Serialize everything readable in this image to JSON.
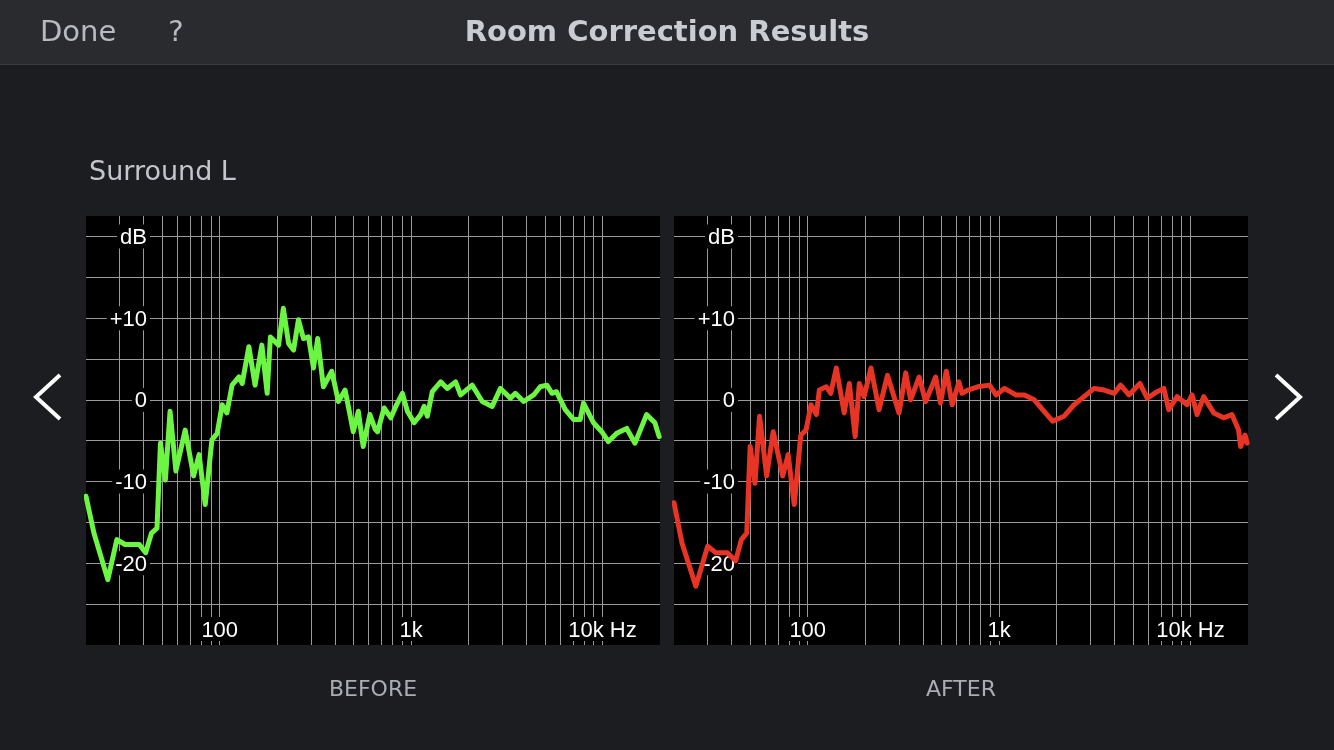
{
  "chart_data": [
    {
      "type": "line",
      "title": "Room Correction Results",
      "subtitle": "Surround L",
      "annotations": [
        "Done",
        "?"
      ],
      "xlabel": "BEFORE",
      "log": "x",
      "grid": true,
      "marker": "none",
      "line_style": "solid",
      "xlim": [
        20,
        20000
      ],
      "ylim": [
        -30,
        22.5
      ],
      "xticks": [
        {
          "value": 30,
          "label": null
        },
        {
          "value": 40,
          "label": null
        },
        {
          "value": 50,
          "label": null
        },
        {
          "value": 60,
          "label": null
        },
        {
          "value": 70,
          "label": null
        },
        {
          "value": 80,
          "label": null
        },
        {
          "value": 90,
          "label": null
        },
        100,
        {
          "value": 200,
          "label": null
        },
        {
          "value": 300,
          "label": null
        },
        {
          "value": 400,
          "label": null
        },
        {
          "value": 500,
          "label": null
        },
        {
          "value": 600,
          "label": null
        },
        {
          "value": 700,
          "label": null
        },
        {
          "value": 800,
          "label": null
        },
        {
          "value": 900,
          "label": null
        },
        {
          "value": 1000,
          "label": "1k"
        },
        {
          "value": 2000,
          "label": null
        },
        {
          "value": 3000,
          "label": null
        },
        {
          "value": 4000,
          "label": null
        },
        {
          "value": 5000,
          "label": null
        },
        {
          "value": 6000,
          "label": null
        },
        {
          "value": 7000,
          "label": null
        },
        {
          "value": 8000,
          "label": null
        },
        {
          "value": 9000,
          "label": null
        },
        {
          "value": 10000,
          "label": "10k Hz"
        }
      ],
      "yticks": [
        {
          "value": -25,
          "label": null
        },
        -20,
        {
          "value": -15,
          "label": null
        },
        -10,
        {
          "value": -5,
          "label": null
        },
        0,
        {
          "value": 5,
          "label": null
        },
        {
          "value": 10,
          "label": "+10"
        },
        {
          "value": 15,
          "label": null
        },
        {
          "value": 20,
          "label": "dB"
        }
      ],
      "series": [
        {
          "color": "#6cf542",
          "x": [
            20,
            22,
            26,
            29,
            32,
            38,
            41,
            44,
            47,
            49,
            52,
            55,
            59,
            66,
            73,
            78,
            84,
            91,
            97,
            103,
            109,
            116,
            126,
            131,
            142,
            153,
            166,
            177,
            184,
            203,
            215,
            229,
            243,
            258,
            274,
            291,
            309,
            325,
            348,
            385,
            417,
            452,
            499,
            530,
            562,
            609,
            650,
            668,
            723,
            784,
            832,
            901,
            957,
            1037,
            1123,
            1169,
            1216,
            1291,
            1428,
            1546,
            1709,
            1814,
            2086,
            2354,
            2653,
            2932,
            3304,
            3507,
            3877,
            4374,
            4733,
            5128,
            5445,
            5750,
            6396,
            7066,
            7655,
            7962,
            8978,
            9925,
            10740,
            11880,
            13400,
            14800,
            17020,
            18800,
            19800
          ],
          "values": [
            -11.8,
            -16.3,
            -22,
            -17.1,
            -17.7,
            -17.7,
            -18.7,
            -16.3,
            -15.7,
            -5.3,
            -9.8,
            -1.4,
            -8.7,
            -3.7,
            -9.3,
            -6.7,
            -12.8,
            -4.9,
            -4.1,
            -0.6,
            -1.6,
            1.8,
            2.8,
            2,
            6.5,
            1.8,
            6.7,
            0.8,
            7.7,
            6.7,
            11.2,
            6.9,
            6.1,
            9.8,
            7.5,
            7.7,
            3.9,
            7.5,
            1.6,
            3.5,
            -0.2,
            1.2,
            -3.9,
            -1.4,
            -5.7,
            -1.8,
            -3.6,
            -3.9,
            -1,
            -2.2,
            -0.8,
            0.8,
            -1.4,
            -2.8,
            -1.8,
            -0.8,
            -2,
            1,
            2.2,
            1.4,
            2.2,
            0.6,
            1.8,
            -0.2,
            -0.8,
            1.4,
            0.2,
            0.8,
            -0.2,
            0.6,
            1.6,
            1.8,
            0.8,
            1,
            -1.2,
            -2.4,
            -2.4,
            -0.4,
            -2.8,
            -3.9,
            -5.1,
            -4.1,
            -3.5,
            -5.3,
            -1.8,
            -2.8,
            -4.5
          ]
        }
      ]
    },
    {
      "type": "line",
      "xlabel": "AFTER",
      "log": "x",
      "grid": true,
      "marker": "none",
      "line_style": "solid",
      "xlim": [
        20,
        20000
      ],
      "ylim": [
        -30,
        22.5
      ],
      "xticks": [
        {
          "value": 30,
          "label": null
        },
        {
          "value": 40,
          "label": null
        },
        {
          "value": 50,
          "label": null
        },
        {
          "value": 60,
          "label": null
        },
        {
          "value": 70,
          "label": null
        },
        {
          "value": 80,
          "label": null
        },
        {
          "value": 90,
          "label": null
        },
        100,
        {
          "value": 200,
          "label": null
        },
        {
          "value": 300,
          "label": null
        },
        {
          "value": 400,
          "label": null
        },
        {
          "value": 500,
          "label": null
        },
        {
          "value": 600,
          "label": null
        },
        {
          "value": 700,
          "label": null
        },
        {
          "value": 800,
          "label": null
        },
        {
          "value": 900,
          "label": null
        },
        {
          "value": 1000,
          "label": "1k"
        },
        {
          "value": 2000,
          "label": null
        },
        {
          "value": 3000,
          "label": null
        },
        {
          "value": 4000,
          "label": null
        },
        {
          "value": 5000,
          "label": null
        },
        {
          "value": 6000,
          "label": null
        },
        {
          "value": 7000,
          "label": null
        },
        {
          "value": 8000,
          "label": null
        },
        {
          "value": 9000,
          "label": null
        },
        {
          "value": 10000,
          "label": "10k Hz"
        }
      ],
      "yticks": [
        {
          "value": -25,
          "label": null
        },
        -20,
        {
          "value": -15,
          "label": null
        },
        -10,
        {
          "value": -5,
          "label": null
        },
        0,
        {
          "value": 5,
          "label": null
        },
        {
          "value": 10,
          "label": "+10"
        },
        {
          "value": 15,
          "label": null
        },
        {
          "value": 20,
          "label": "dB"
        }
      ],
      "series": [
        {
          "color": "#e83424",
          "x": [
            20,
            22,
            26,
            30,
            33,
            38,
            42,
            45,
            48,
            50,
            53,
            56,
            61,
            66,
            74,
            79,
            85,
            92,
            98,
            104,
            111,
            115,
            125,
            132,
            141,
            155,
            165,
            177,
            186,
            197,
            214,
            236,
            261,
            300,
            325,
            345,
            382,
            413,
            466,
            494,
            530,
            569,
            617,
            640,
            687,
            774,
            891,
            965,
            1066,
            1226,
            1356,
            1528,
            1688,
            1904,
            2188,
            2466,
            2781,
            3139,
            3540,
            3990,
            4318,
            4772,
            5448,
            5948,
            6700,
            7260,
            7708,
            8525,
            9610,
            10200,
            10830,
            11730,
            13240,
            14920,
            16480,
            17860,
            18300,
            19300,
            19800
          ],
          "values": [
            -12.6,
            -17.5,
            -22.8,
            -17.9,
            -18.7,
            -18.7,
            -19.7,
            -17.1,
            -16.3,
            -5.7,
            -10.2,
            -2,
            -9.3,
            -3.9,
            -9.3,
            -6.7,
            -12.8,
            -4.3,
            -3.7,
            -0.6,
            -1.8,
            1.2,
            1.6,
            0.8,
            3.9,
            -1.6,
            2,
            -4.5,
            2,
            0.4,
            3.9,
            -1.2,
            3,
            -1.6,
            3.3,
            0,
            2.8,
            -0.2,
            2.8,
            -0.4,
            3.5,
            -0.6,
            2.2,
            0.8,
            1.2,
            1.6,
            1.8,
            0.6,
            1.4,
            0.6,
            0.6,
            0,
            -1.2,
            -2.6,
            -2,
            -0.6,
            0.4,
            1.4,
            1.2,
            0.8,
            1.8,
            0.6,
            2,
            0.2,
            1,
            1.4,
            -1.2,
            0.4,
            -0.6,
            0.6,
            -1.8,
            0.4,
            -1.6,
            -2.2,
            -1.8,
            -3.7,
            -5.7,
            -4.3,
            -5.3
          ]
        }
      ]
    }
  ]
}
